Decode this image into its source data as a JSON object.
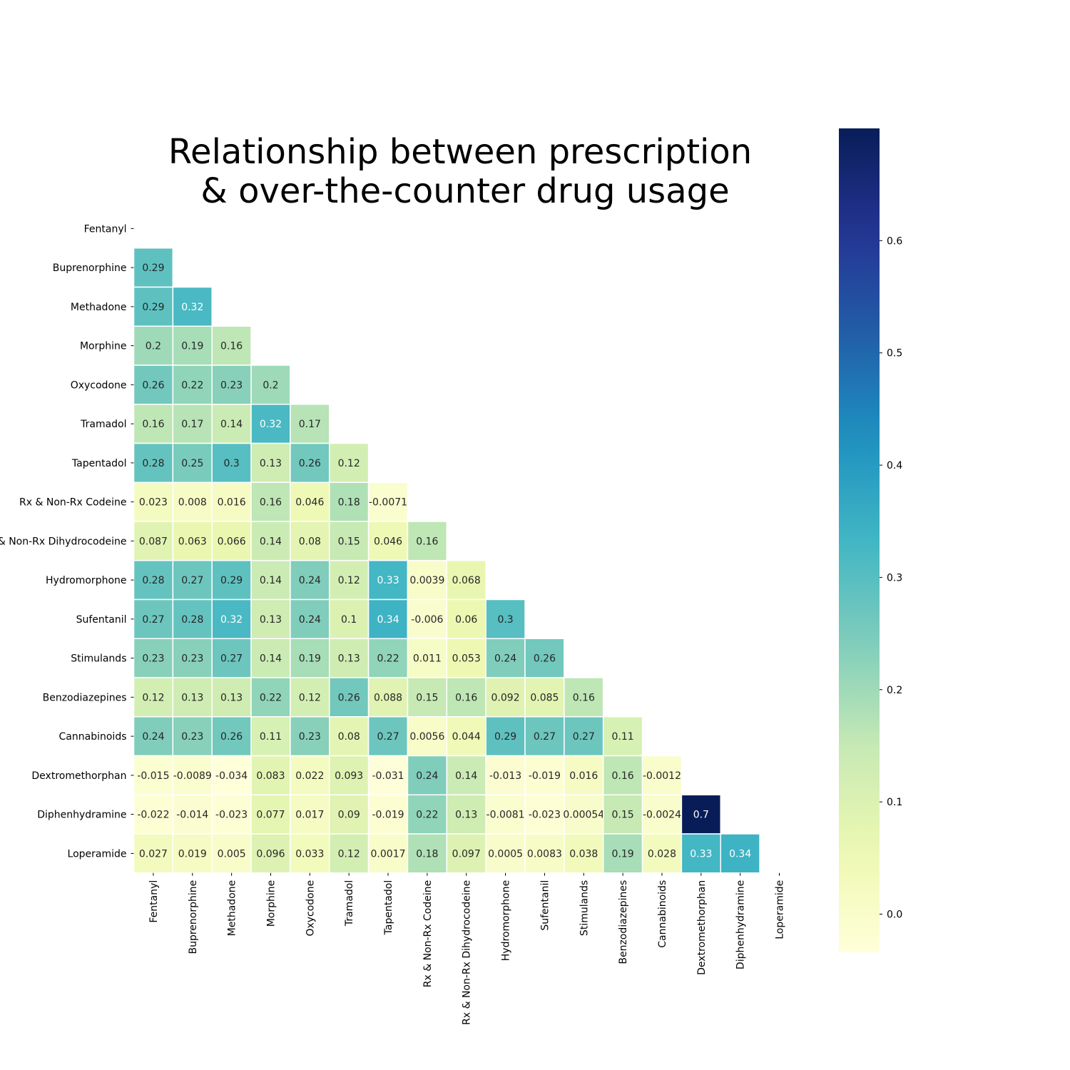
{
  "chart_data": {
    "type": "heatmap",
    "title_lines": [
      "Relationship between prescription",
      "& over-the-counter drug usage"
    ],
    "xlabel": "",
    "ylabel": "",
    "labels": [
      "Fentanyl",
      "Buprenorphine",
      "Methadone",
      "Morphine",
      "Oxycodone",
      "Tramadol",
      "Tapentadol",
      "Rx & Non-Rx Codeine",
      "Rx & Non-Rx Dihydrocodeine",
      "Hydromorphone",
      "Sufentanil",
      "Stimulands",
      "Benzodiazepines",
      "Cannabinoids",
      "Dextromethorphan",
      "Diphenhydramine",
      "Loperamide"
    ],
    "mask": "upper-triangle-including-diagonal",
    "matrix_lower": [
      [],
      [
        "0.29"
      ],
      [
        "0.29",
        "0.32"
      ],
      [
        "0.2",
        "0.19",
        "0.16"
      ],
      [
        "0.26",
        "0.22",
        "0.23",
        "0.2"
      ],
      [
        "0.16",
        "0.17",
        "0.14",
        "0.32",
        "0.17"
      ],
      [
        "0.28",
        "0.25",
        "0.3",
        "0.13",
        "0.26",
        "0.12"
      ],
      [
        "0.023",
        "0.008",
        "0.016",
        "0.16",
        "0.046",
        "0.18",
        "-0.0071"
      ],
      [
        "0.087",
        "0.063",
        "0.066",
        "0.14",
        "0.08",
        "0.15",
        "0.046",
        "0.16"
      ],
      [
        "0.28",
        "0.27",
        "0.29",
        "0.14",
        "0.24",
        "0.12",
        "0.33",
        "0.0039",
        "0.068"
      ],
      [
        "0.27",
        "0.28",
        "0.32",
        "0.13",
        "0.24",
        "0.1",
        "0.34",
        "-0.006",
        "0.06",
        "0.3"
      ],
      [
        "0.23",
        "0.23",
        "0.27",
        "0.14",
        "0.19",
        "0.13",
        "0.22",
        "0.011",
        "0.053",
        "0.24",
        "0.26"
      ],
      [
        "0.12",
        "0.13",
        "0.13",
        "0.22",
        "0.12",
        "0.26",
        "0.088",
        "0.15",
        "0.16",
        "0.092",
        "0.085",
        "0.16"
      ],
      [
        "0.24",
        "0.23",
        "0.26",
        "0.11",
        "0.23",
        "0.08",
        "0.27",
        "0.0056",
        "0.044",
        "0.29",
        "0.27",
        "0.27",
        "0.11"
      ],
      [
        "-0.015",
        "-0.0089",
        "-0.034",
        "0.083",
        "0.022",
        "0.093",
        "-0.031",
        "0.24",
        "0.14",
        "-0.013",
        "-0.019",
        "0.016",
        "0.16",
        "-0.0012"
      ],
      [
        "-0.022",
        "-0.014",
        "-0.023",
        "0.077",
        "0.017",
        "0.09",
        "-0.019",
        "0.22",
        "0.13",
        "-0.0081",
        "-0.023",
        "0.00054",
        "0.15",
        "-0.0024",
        "0.7"
      ],
      [
        "0.027",
        "0.019",
        "0.005",
        "0.096",
        "0.033",
        "0.12",
        "0.0017",
        "0.18",
        "0.097",
        "0.0005",
        "0.0083",
        "0.038",
        "0.19",
        "0.028",
        "0.33",
        "0.34"
      ]
    ],
    "colormap": "YlGnBu",
    "vmin": -0.034,
    "vmax": 0.7,
    "colorbar_ticks": [
      "0.0",
      "0.1",
      "0.2",
      "0.3",
      "0.4",
      "0.5",
      "0.6"
    ],
    "cell_border_color": "#ffffff",
    "annotate": true,
    "grid": false
  }
}
